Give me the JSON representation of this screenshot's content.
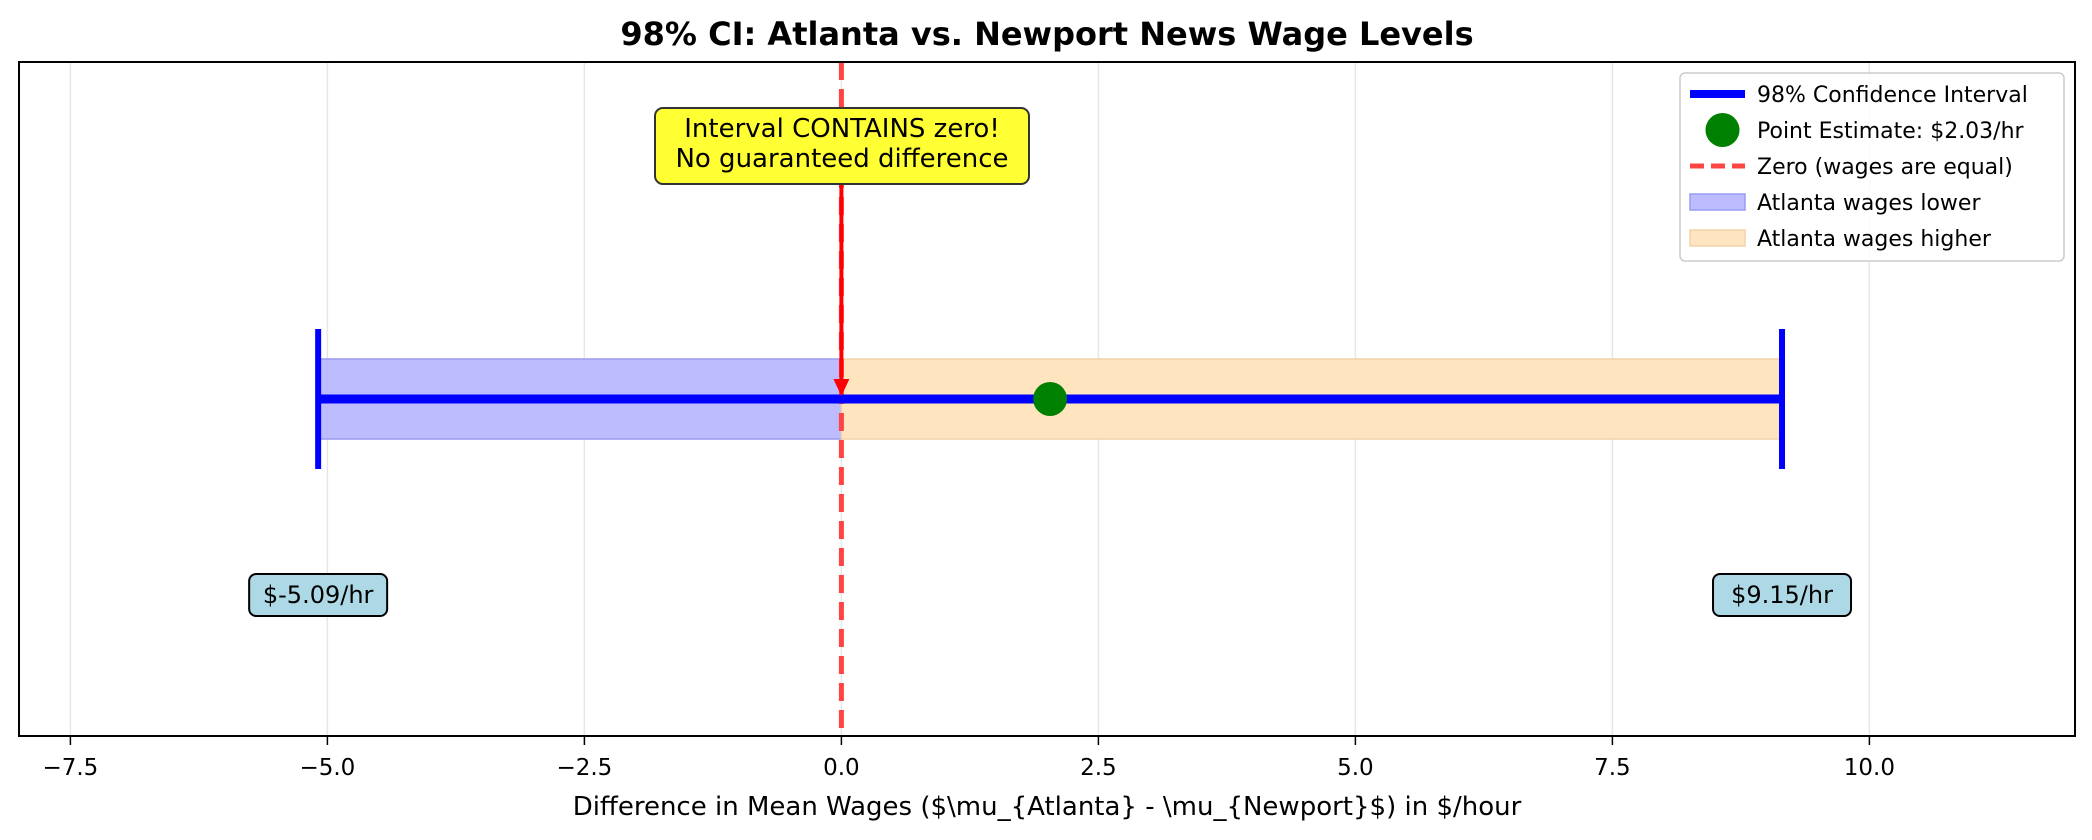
{
  "chart_data": {
    "type": "errorbar",
    "title": "98% CI: Atlanta vs. Newport News Wage Levels",
    "xlabel": "Difference in Mean Wages ($\\mu_{Atlanta} - \\mu_{Newport}$) in $/hour",
    "ylabel": "",
    "xlim": [
      -8.0,
      12.0
    ],
    "xticks": [
      -7.5,
      -5.0,
      -2.5,
      0.0,
      2.5,
      5.0,
      7.5,
      10.0
    ],
    "xtick_labels": [
      "−7.5",
      "−5.0",
      "−2.5",
      "0.0",
      "2.5",
      "5.0",
      "7.5",
      "10.0"
    ],
    "grid": "vertical",
    "legend_position": "top-right",
    "interval": {
      "lower": -5.09,
      "upper": 9.15,
      "label": "98% Confidence Interval",
      "color": "#0000ff"
    },
    "point_estimate": {
      "value": 2.03,
      "label": "Point Estimate: $2.03/hr",
      "color": "#008000"
    },
    "reference_line": {
      "value": 0.0,
      "label": "Zero (wages are equal)",
      "color": "#ff4444"
    },
    "regions": [
      {
        "from": -5.09,
        "to": 0.0,
        "label": "Atlanta wages lower",
        "color": "#bcbcff"
      },
      {
        "from": 0.0,
        "to": 9.15,
        "label": "Atlanta wages higher",
        "color": "#ffe5bf"
      }
    ],
    "annotations": [
      {
        "lines": [
          "Interval CONTAINS zero!",
          "No guaranteed difference"
        ],
        "bg": "#ffff33"
      },
      {
        "text": "$-5.09/hr",
        "x": -5.09,
        "bg": "#add8e6"
      },
      {
        "text": "$9.15/hr",
        "x": 9.15,
        "bg": "#add8e6"
      }
    ]
  }
}
